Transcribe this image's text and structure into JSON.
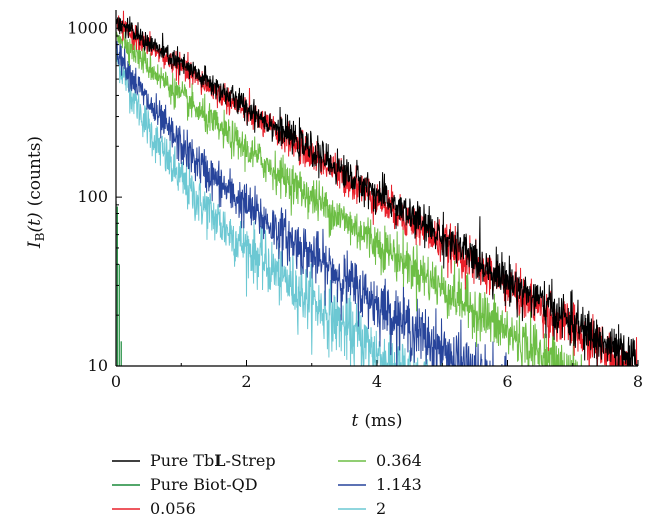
{
  "chart_data": {
    "type": "line",
    "x_unit": "ms",
    "xlim": [
      0,
      8
    ],
    "ylim": [
      10,
      1150
    ],
    "y_scale": "log",
    "x_ticks": [
      "0",
      "2",
      "4",
      "6",
      "8"
    ],
    "x_tick_values": [
      0,
      2,
      4,
      6,
      8
    ],
    "y_ticks": [
      "10",
      "100",
      "1000"
    ],
    "y_tick_values": [
      10,
      100,
      1000
    ],
    "xlabel": {
      "var": "t",
      "unit": "(ms)"
    },
    "ylabel": {
      "var": "I",
      "sub": "B",
      "arg": "(t)",
      "unit": "(counts)"
    },
    "legend_position": "bottom",
    "series": [
      {
        "name": "Pure TbL-Strep",
        "name_pre": "Pure Tb",
        "name_bold": "L",
        "name_post": "-Strep",
        "color": "#000000",
        "components": [
          [
            1100,
            1.7
          ]
        ],
        "noise": 0.08
      },
      {
        "name": "0.056",
        "color": "#e8202a",
        "components": [
          [
            1050,
            1.68
          ]
        ],
        "noise": 0.08
      },
      {
        "name": "0.364",
        "color": "#6dbe45",
        "components": [
          [
            350,
            0.6
          ],
          [
            600,
            1.65
          ]
        ],
        "noise": 0.09
      },
      {
        "name": "1.143",
        "color": "#27449b",
        "components": [
          [
            470,
            0.4
          ],
          [
            310,
            1.55
          ]
        ],
        "noise": 0.1
      },
      {
        "name": "2",
        "color": "#6cc8d3",
        "components": [
          [
            480,
            0.35
          ],
          [
            200,
            1.42
          ]
        ],
        "noise": 0.11
      },
      {
        "name": "Pure Biot-QD",
        "color": "#1a8a3a",
        "spikes": [
          [
            0.0,
            95
          ],
          [
            0.02,
            88
          ],
          [
            0.05,
            40
          ],
          [
            0.08,
            14
          ]
        ]
      }
    ]
  }
}
